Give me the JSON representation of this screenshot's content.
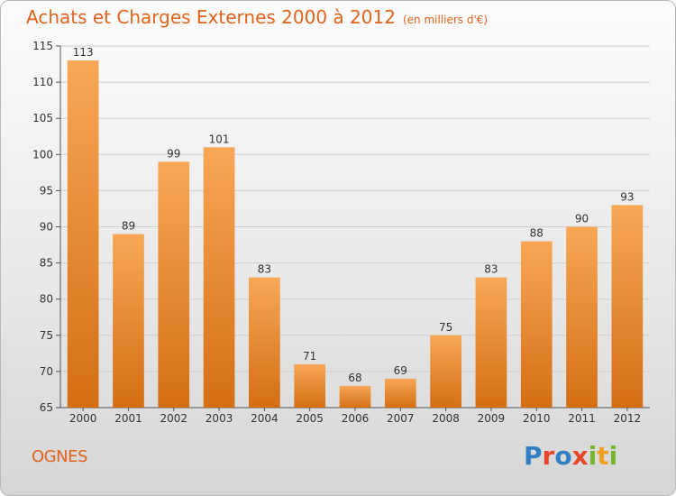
{
  "chart_data": {
    "type": "bar",
    "title": "Achats et Charges Externes 2000 à 2012",
    "subtitle": "(en milliers d'€)",
    "categories": [
      "2000",
      "2001",
      "2002",
      "2003",
      "2004",
      "2005",
      "2006",
      "2007",
      "2008",
      "2009",
      "2010",
      "2011",
      "2012"
    ],
    "values": [
      113,
      89,
      99,
      101,
      83,
      71,
      68,
      69,
      75,
      83,
      88,
      90,
      93
    ],
    "xlabel": "",
    "ylabel": "",
    "ylim": [
      65,
      115
    ],
    "yticks": [
      65,
      70,
      75,
      80,
      85,
      90,
      95,
      100,
      105,
      110,
      115
    ],
    "grid": true,
    "bar_color_top": "#f7a756",
    "bar_color_bottom": "#d46e14"
  },
  "location": "OGNES",
  "logo": {
    "text": "Proxiti",
    "letters": [
      "P",
      "r",
      "o",
      "x",
      "i",
      "t",
      "i"
    ],
    "colors": [
      "#2f7fc2",
      "#e7462a",
      "#2f7fc2",
      "#e7462a",
      "#74b62c",
      "#f2a01e",
      "#74b62c"
    ]
  },
  "colors": {
    "accent": "#e2631b"
  }
}
